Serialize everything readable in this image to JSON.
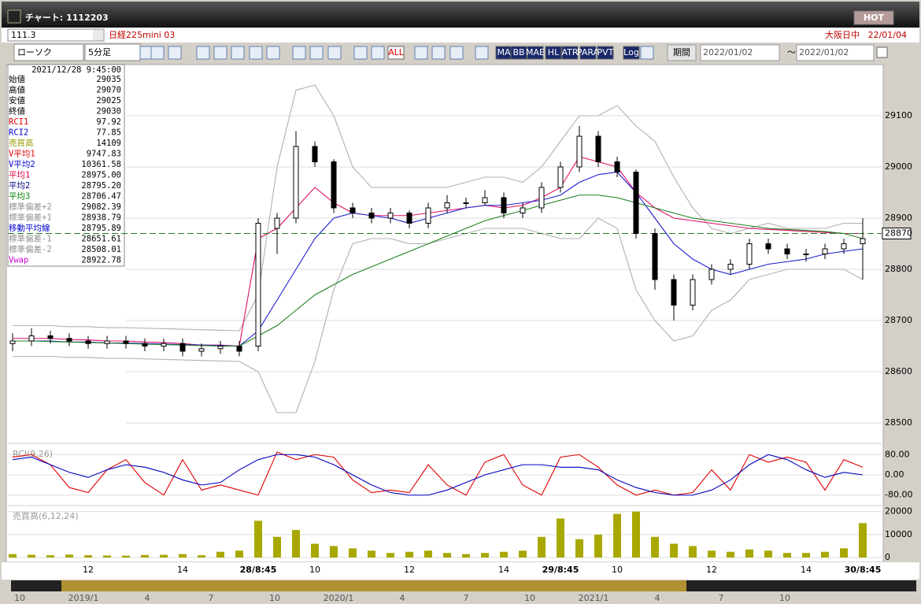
{
  "window": {
    "title": "チャート: 1112203",
    "hot": "HOT"
  },
  "symbol_bar": {
    "code": "111.3",
    "name": "日経225mini 03",
    "session": "大阪日中",
    "date": "22/01/04"
  },
  "toolbar": {
    "chart_style": "ローソク",
    "interval": "5分足",
    "icons": [
      "ALL",
      "MA",
      "BB",
      "MAE",
      "HL",
      "ATR",
      "PARA",
      "PVT",
      "Log"
    ],
    "period": "期間",
    "from": "2022/01/02",
    "sep": "〜",
    "to": "2022/01/02"
  },
  "info_panel": {
    "datetime": "2021/12/28 9:45:00",
    "rows": [
      {
        "label": "始値",
        "value": "29035",
        "color": "#000000"
      },
      {
        "label": "高値",
        "value": "29070",
        "color": "#000000"
      },
      {
        "label": "安値",
        "value": "29025",
        "color": "#000000"
      },
      {
        "label": "終値",
        "value": "29030",
        "color": "#000000"
      },
      {
        "label": "RCI1",
        "value": "97.92",
        "color": "#e00000"
      },
      {
        "label": "RCI2",
        "value": "77.85",
        "color": "#0000d0"
      },
      {
        "label": "売買高",
        "value": "14109",
        "color": "#999900"
      },
      {
        "label": "V平均1",
        "value": "9747.83",
        "color": "#e00000"
      },
      {
        "label": "V平均2",
        "value": "10361.58",
        "color": "#0000d0"
      },
      {
        "label": "平均1",
        "value": "28975.00",
        "color": "#e00040"
      },
      {
        "label": "平均2",
        "value": "28795.20",
        "color": "#000080"
      },
      {
        "label": "平均3",
        "value": "28706.47",
        "color": "#008000"
      },
      {
        "label": "標準偏差+2",
        "value": "29082.39",
        "color": "#909090"
      },
      {
        "label": "標準偏差+1",
        "value": "28938.79",
        "color": "#909090"
      },
      {
        "label": "移動平均線",
        "value": "28795.89",
        "color": "#0000d0"
      },
      {
        "label": "標準偏差-1",
        "value": "28651.61",
        "color": "#909090"
      },
      {
        "label": "標準偏差-2",
        "value": "28508.01",
        "color": "#909090"
      },
      {
        "label": "Vwap",
        "value": "28922.78",
        "color": "#d000d0"
      }
    ]
  },
  "navigator": {
    "labels": [
      "10",
      "2019/1",
      "4",
      "7",
      "10",
      "2020/1",
      "4",
      "7",
      "10",
      "2021/1",
      "4",
      "7",
      "10"
    ]
  },
  "chart_data": [
    {
      "type": "candlestick",
      "grid": true,
      "categories": [
        null,
        null,
        null,
        null,
        "12",
        null,
        null,
        null,
        null,
        "14",
        null,
        null,
        null,
        "28/8:45",
        null,
        null,
        "10",
        null,
        null,
        null,
        null,
        "12",
        null,
        null,
        null,
        null,
        "14",
        null,
        null,
        "29/8:45",
        null,
        null,
        "10",
        null,
        null,
        null,
        null,
        "12",
        null,
        null,
        null,
        null,
        "14",
        null,
        null,
        "30/8:45"
      ],
      "open": [
        28655,
        28660,
        28670,
        28665,
        28660,
        28655,
        28660,
        28655,
        28650,
        28655,
        28640,
        28645,
        28650,
        28650,
        28880,
        28900,
        29040,
        29010,
        28920,
        28910,
        28900,
        28910,
        28890,
        28920,
        28930,
        28930,
        28940,
        28910,
        28920,
        28960,
        29000,
        29060,
        29010,
        28990,
        28870,
        28780,
        28730,
        28780,
        28800,
        28810,
        28850,
        28840,
        28830,
        28830,
        28840,
        28850
      ],
      "high": [
        28675,
        28685,
        28680,
        28675,
        28670,
        28670,
        28670,
        28665,
        28665,
        28665,
        28655,
        28660,
        28660,
        28900,
        28910,
        29070,
        29050,
        29015,
        28930,
        28920,
        28920,
        28915,
        28930,
        28945,
        28940,
        28955,
        28950,
        28930,
        28970,
        29010,
        29080,
        29070,
        29020,
        28995,
        28880,
        28790,
        28790,
        28810,
        28820,
        28860,
        28860,
        28850,
        28840,
        28850,
        28860,
        28900
      ],
      "low": [
        28640,
        28650,
        28655,
        28650,
        28645,
        28645,
        28645,
        28640,
        28640,
        28630,
        28630,
        28635,
        28630,
        28640,
        28830,
        28890,
        29000,
        28910,
        28900,
        28890,
        28890,
        28880,
        28880,
        28910,
        28920,
        28925,
        28900,
        28900,
        28910,
        28950,
        28990,
        29000,
        28980,
        28860,
        28760,
        28700,
        28720,
        28770,
        28790,
        28800,
        28830,
        28820,
        28815,
        28820,
        28830,
        28780
      ],
      "close": [
        28660,
        28670,
        28665,
        28660,
        28655,
        28660,
        28655,
        28650,
        28655,
        28640,
        28645,
        28650,
        28640,
        28890,
        28900,
        29040,
        29010,
        28920,
        28910,
        28900,
        28910,
        28890,
        28920,
        28930,
        28930,
        28940,
        28910,
        28920,
        28960,
        29000,
        29060,
        29010,
        28990,
        28870,
        28780,
        28730,
        28780,
        28800,
        28810,
        28850,
        28840,
        28830,
        28830,
        28840,
        28850,
        28860
      ],
      "series": [
        {
          "color": "#b0b0b0",
          "values": [
            28690,
            28690,
            28690,
            28688,
            28688,
            28686,
            28686,
            28685,
            28684,
            28683,
            28682,
            28681,
            28680,
            28750,
            29000,
            29150,
            29160,
            29100,
            29000,
            28960,
            28960,
            28960,
            28960,
            28960,
            28970,
            28980,
            28980,
            28970,
            29000,
            29050,
            29100,
            29100,
            29120,
            29080,
            29050,
            28980,
            28920,
            28880,
            28870,
            28880,
            28890,
            28880,
            28880,
            28880,
            28890,
            28890
          ]
        },
        {
          "color": "#b0b0b0",
          "values": [
            28630,
            28630,
            28630,
            28628,
            28628,
            28626,
            28626,
            28625,
            28624,
            28623,
            28622,
            28621,
            28620,
            28600,
            28520,
            28520,
            28620,
            28760,
            28850,
            28860,
            28860,
            28850,
            28850,
            28860,
            28870,
            28880,
            28880,
            28880,
            28870,
            28860,
            28860,
            28900,
            28880,
            28760,
            28700,
            28660,
            28670,
            28720,
            28740,
            28780,
            28790,
            28800,
            28800,
            28800,
            28800,
            28780
          ]
        },
        {
          "color": "#e0106a",
          "values": [
            28665,
            28665,
            28665,
            28663,
            28662,
            28660,
            28660,
            28658,
            28657,
            28655,
            28652,
            28652,
            28650,
            28860,
            28880,
            28920,
            28960,
            28930,
            28910,
            28905,
            28905,
            28905,
            28910,
            28915,
            28920,
            28925,
            28920,
            28925,
            28940,
            28960,
            29020,
            29010,
            29000,
            28950,
            28920,
            28900,
            28895,
            28890,
            28885,
            28880,
            28878,
            28876,
            28874,
            28872,
            28870,
            28870
          ]
        },
        {
          "color": "#1c1cd0",
          "values": [
            28660,
            28660,
            28660,
            28658,
            28658,
            28656,
            28656,
            28655,
            28654,
            28653,
            28652,
            28651,
            28650,
            28680,
            28740,
            28800,
            28860,
            28900,
            28910,
            28905,
            28900,
            28890,
            28900,
            28910,
            28920,
            28925,
            28925,
            28930,
            28935,
            28945,
            28970,
            28985,
            28990,
            28950,
            28900,
            28850,
            28820,
            28800,
            28790,
            28800,
            28810,
            28815,
            28820,
            28830,
            28835,
            28840
          ]
        },
        {
          "color": "#208020",
          "values": [
            28660,
            28660,
            28659,
            28658,
            28657,
            28656,
            28655,
            28654,
            28653,
            28652,
            28651,
            28650,
            28650,
            28670,
            28690,
            28720,
            28750,
            28770,
            28790,
            28805,
            28820,
            28835,
            28850,
            28865,
            28880,
            28895,
            28905,
            28915,
            28925,
            28935,
            28945,
            28945,
            28940,
            28930,
            28920,
            28910,
            28900,
            28895,
            28890,
            28885,
            28880,
            28878,
            28876,
            28874,
            28870,
            28860
          ]
        }
      ],
      "ylim": [
        28480,
        29200
      ],
      "yticks": [
        28500,
        28600,
        28700,
        28800,
        28900,
        29000,
        29100
      ],
      "reference_line": 28870
    },
    {
      "type": "line",
      "title": "RCI(9,26)",
      "series": [
        {
          "color": "#e00000",
          "values": [
            70,
            80,
            40,
            -50,
            -70,
            20,
            60,
            -30,
            -80,
            60,
            -60,
            -40,
            -60,
            -80,
            90,
            60,
            80,
            70,
            -20,
            -70,
            -60,
            -70,
            40,
            -40,
            -80,
            50,
            80,
            -40,
            -80,
            70,
            80,
            30,
            -40,
            -80,
            -60,
            -80,
            -70,
            20,
            -60,
            80,
            50,
            70,
            50,
            -60,
            60,
            30
          ]
        },
        {
          "color": "#0000c0",
          "values": [
            60,
            70,
            40,
            10,
            -10,
            20,
            40,
            30,
            10,
            -20,
            -40,
            -30,
            20,
            60,
            80,
            80,
            70,
            40,
            0,
            -40,
            -70,
            -80,
            -80,
            -60,
            -30,
            0,
            20,
            40,
            40,
            30,
            30,
            20,
            -20,
            -50,
            -70,
            -80,
            -80,
            -60,
            -20,
            40,
            80,
            60,
            20,
            -10,
            10,
            0
          ]
        }
      ],
      "ylim": [
        -115,
        115
      ],
      "yticks": [
        {
          "value": -80,
          "label": "-80.00"
        },
        {
          "value": 0,
          "label": "0.00"
        },
        {
          "value": 80,
          "label": "80.00"
        }
      ]
    },
    {
      "type": "bar",
      "title": "売買高(6,12,24)",
      "color": "#a8a800",
      "values": [
        1500,
        1200,
        1000,
        1300,
        1000,
        900,
        800,
        1100,
        1200,
        1500,
        1000,
        2500,
        3000,
        16000,
        9000,
        12000,
        6000,
        5000,
        4000,
        3000,
        2000,
        2500,
        3000,
        2000,
        1500,
        2000,
        2500,
        3000,
        9000,
        17000,
        8000,
        10000,
        19000,
        20000,
        9000,
        6000,
        5000,
        3000,
        2500,
        3500,
        3000,
        2000,
        2000,
        2500,
        4000,
        15000
      ],
      "ylim": [
        0,
        21600
      ],
      "yticks": [
        0,
        10000,
        20000
      ]
    }
  ]
}
